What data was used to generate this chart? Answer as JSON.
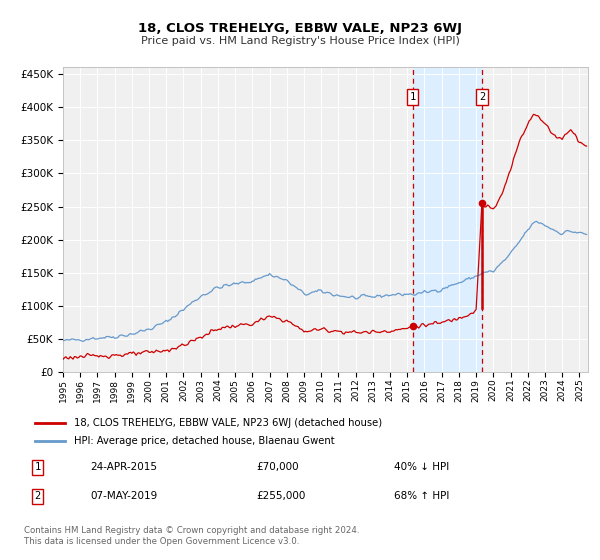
{
  "title": "18, CLOS TREHELYG, EBBW VALE, NP23 6WJ",
  "subtitle": "Price paid vs. HM Land Registry's House Price Index (HPI)",
  "legend_line1": "18, CLOS TREHELYG, EBBW VALE, NP23 6WJ (detached house)",
  "legend_line2": "HPI: Average price, detached house, Blaenau Gwent",
  "transaction1_date": "24-APR-2015",
  "transaction1_price": 70000,
  "transaction1_label": "40% ↓ HPI",
  "transaction1_year": 2015.31,
  "transaction2_date": "07-MAY-2019",
  "transaction2_price": 255000,
  "transaction2_label": "68% ↑ HPI",
  "transaction2_year": 2019.35,
  "footer": "Contains HM Land Registry data © Crown copyright and database right 2024.\nThis data is licensed under the Open Government Licence v3.0.",
  "hpi_color": "#6699cc",
  "price_color": "#cc0000",
  "background_color": "#ffffff",
  "plot_bg_color": "#f0f0f0",
  "highlight_color": "#ddeeff",
  "ylim": [
    0,
    460000
  ],
  "xlim_start": 1995.0,
  "xlim_end": 2025.5
}
